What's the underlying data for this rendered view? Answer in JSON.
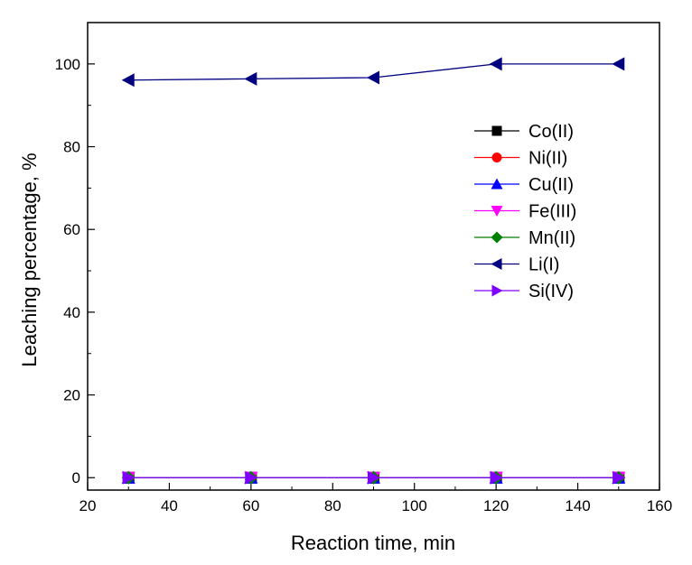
{
  "chart_data": {
    "type": "line",
    "title": "",
    "xlabel": "Reaction time, min",
    "ylabel": "Leaching percentage, %",
    "xlim": [
      20,
      160
    ],
    "ylim": [
      -3,
      110
    ],
    "xticks": [
      20,
      40,
      60,
      80,
      100,
      120,
      140,
      160
    ],
    "xtick_labels": [
      "20",
      "40",
      "60",
      "80",
      "100",
      "120",
      "140",
      "160"
    ],
    "yticks": [
      0,
      20,
      40,
      60,
      80,
      100
    ],
    "ytick_labels": [
      "0",
      "20",
      "40",
      "60",
      "80",
      "100"
    ],
    "grid": false,
    "legend_position": "right",
    "x": [
      30,
      60,
      90,
      120,
      150
    ],
    "series": [
      {
        "name": "Co(II)",
        "values": [
          0,
          0,
          0,
          0,
          0
        ],
        "color": "#000000",
        "marker": "square"
      },
      {
        "name": "Ni(II)",
        "values": [
          0,
          0,
          0,
          0,
          0
        ],
        "color": "#ff0000",
        "marker": "circle"
      },
      {
        "name": "Cu(II)",
        "values": [
          0,
          0,
          0,
          0,
          0
        ],
        "color": "#0000ff",
        "marker": "triangle-up"
      },
      {
        "name": "Fe(III)",
        "values": [
          0,
          0,
          0,
          0,
          0
        ],
        "color": "#ff00ff",
        "marker": "triangle-down"
      },
      {
        "name": "Mn(II)",
        "values": [
          0,
          0,
          0,
          0,
          0
        ],
        "color": "#008000",
        "marker": "diamond"
      },
      {
        "name": "Li(I)",
        "values": [
          96.1,
          96.4,
          96.7,
          100,
          100
        ],
        "color": "#000080",
        "marker": "triangle-left"
      },
      {
        "name": "Si(IV)",
        "values": [
          0,
          0,
          0,
          0,
          0
        ],
        "color": "#8000ff",
        "marker": "triangle-right"
      }
    ]
  }
}
